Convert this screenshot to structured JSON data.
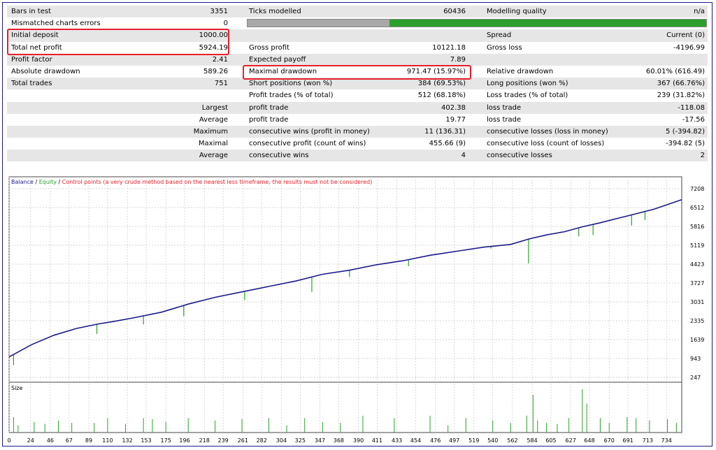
{
  "report": {
    "row1": {
      "bars_label": "Bars in test",
      "bars_value": "3351",
      "ticks_label": "Ticks modelled",
      "ticks_value": "60436",
      "quality_label": "Modelling quality",
      "quality_value": "n/a"
    },
    "row2": {
      "mismatch_label": "Mismatched charts errors",
      "mismatch_value": "0"
    },
    "row3": {
      "deposit_label": "Initial deposit",
      "deposit_value": "1000.00",
      "spread_label": "Spread",
      "spread_value": "Current (0)"
    },
    "row4": {
      "netprofit_label": "Total net profit",
      "netprofit_value": "5924.19",
      "grossprofit_label": "Gross profit",
      "grossprofit_value": "10121.18",
      "grossloss_label": "Gross loss",
      "grossloss_value": "-4196.99"
    },
    "row5": {
      "pf_label": "Profit factor",
      "pf_value": "2.41",
      "ep_label": "Expected payoff",
      "ep_value": "7.89"
    },
    "row6": {
      "absdd_label": "Absolute drawdown",
      "absdd_value": "589.26",
      "maxdd_label": "Maximal drawdown",
      "maxdd_value": "971.47 (15.97%)",
      "reldd_label": "Relative drawdown",
      "reldd_value": "60.01% (616.49)"
    },
    "row7": {
      "trades_label": "Total trades",
      "trades_value": "751",
      "short_label": "Short positions (won %)",
      "short_value": "384 (69.53%)",
      "long_label": "Long positions (won %)",
      "long_value": "367 (66.76%)"
    },
    "row8": {
      "ptrades_label": "Profit trades (% of total)",
      "ptrades_value": "512 (68.18%)",
      "ltrades_label": "Loss trades (% of total)",
      "ltrades_value": "239 (31.82%)"
    },
    "row9": {
      "prefix": "Largest",
      "profit_label": "profit trade",
      "profit_value": "402.38",
      "loss_label": "loss trade",
      "loss_value": "-118.08"
    },
    "row10": {
      "prefix": "Average",
      "profit_label": "profit trade",
      "profit_value": "19.77",
      "loss_label": "loss trade",
      "loss_value": "-17.56"
    },
    "row11": {
      "prefix": "Maximum",
      "wins_label": "consecutive wins (profit in money)",
      "wins_value": "11 (136.31)",
      "losses_label": "consecutive losses (loss in money)",
      "losses_value": "5 (-394.82)"
    },
    "row12": {
      "prefix": "Maximal",
      "cprofit_label": "consecutive profit (count of wins)",
      "cprofit_value": "455.66 (9)",
      "closs_label": "consecutive loss (count of losses)",
      "closs_value": "-394.82 (5)"
    },
    "row13": {
      "prefix": "Average",
      "cwins_label": "consecutive wins",
      "cwins_value": "4",
      "closses_label": "consecutive losses",
      "closses_value": "2"
    }
  },
  "quality_bar": {
    "gray_fraction": 0.31
  },
  "colors": {
    "balance": "#1a1a8c",
    "equity": "#2ca02c",
    "control": "#e8202a",
    "highlight": "#e8202a",
    "alt_row": "#e6e6e6",
    "grid": "#c8c8c8"
  },
  "chart_data": {
    "type": "line",
    "legend": {
      "balance": "Balance",
      "sep1": " / ",
      "equity": "Equity",
      "sep2": " / ",
      "control": "Control points (a very crude method based on the nearest less timeframe, the results must not be considered)"
    },
    "size_label": "Size",
    "y_ticks": [
      7208,
      6512,
      5816,
      5119,
      4423,
      3727,
      3031,
      2335,
      1639,
      943,
      247
    ],
    "x_ticks": [
      0,
      24,
      46,
      67,
      89,
      110,
      132,
      153,
      175,
      196,
      218,
      239,
      261,
      282,
      304,
      325,
      347,
      368,
      390,
      411,
      433,
      454,
      476,
      497,
      519,
      540,
      562,
      584,
      605,
      627,
      648,
      670,
      691,
      713,
      734
    ],
    "xlim": [
      0,
      751
    ],
    "ylim": [
      247,
      7208
    ],
    "balance": [
      [
        0,
        1000
      ],
      [
        25,
        1450
      ],
      [
        50,
        1800
      ],
      [
        75,
        2050
      ],
      [
        100,
        2220
      ],
      [
        115,
        2300
      ],
      [
        140,
        2450
      ],
      [
        170,
        2650
      ],
      [
        200,
        2950
      ],
      [
        230,
        3200
      ],
      [
        260,
        3400
      ],
      [
        290,
        3600
      ],
      [
        320,
        3800
      ],
      [
        350,
        4050
      ],
      [
        380,
        4200
      ],
      [
        410,
        4400
      ],
      [
        440,
        4550
      ],
      [
        470,
        4750
      ],
      [
        500,
        4900
      ],
      [
        530,
        5050
      ],
      [
        560,
        5150
      ],
      [
        580,
        5350
      ],
      [
        600,
        5500
      ],
      [
        620,
        5620
      ],
      [
        640,
        5800
      ],
      [
        660,
        5950
      ],
      [
        690,
        6200
      ],
      [
        720,
        6450
      ],
      [
        751,
        6800
      ]
    ],
    "equity_dips": [
      [
        5,
        700
      ],
      [
        98,
        1850
      ],
      [
        150,
        2200
      ],
      [
        195,
        2500
      ],
      [
        263,
        3100
      ],
      [
        338,
        3400
      ],
      [
        380,
        3950
      ],
      [
        446,
        4350
      ],
      [
        538,
        5000
      ],
      [
        580,
        4450
      ],
      [
        636,
        5450
      ],
      [
        652,
        5500
      ],
      [
        695,
        5850
      ],
      [
        710,
        6050
      ]
    ],
    "size_spikes": [
      [
        5,
        0.32
      ],
      [
        10,
        0.15
      ],
      [
        28,
        0.22
      ],
      [
        40,
        0.18
      ],
      [
        55,
        0.25
      ],
      [
        70,
        0.2
      ],
      [
        95,
        0.2
      ],
      [
        110,
        0.3
      ],
      [
        130,
        0.18
      ],
      [
        150,
        0.3
      ],
      [
        160,
        0.28
      ],
      [
        175,
        0.22
      ],
      [
        200,
        0.3
      ],
      [
        230,
        0.25
      ],
      [
        260,
        0.28
      ],
      [
        290,
        0.3
      ],
      [
        310,
        0.15
      ],
      [
        330,
        0.3
      ],
      [
        350,
        0.22
      ],
      [
        370,
        0.2
      ],
      [
        395,
        0.35
      ],
      [
        430,
        0.3
      ],
      [
        470,
        0.35
      ],
      [
        490,
        0.15
      ],
      [
        510,
        0.3
      ],
      [
        540,
        0.25
      ],
      [
        560,
        0.2
      ],
      [
        578,
        0.35
      ],
      [
        585,
        0.78
      ],
      [
        590,
        0.25
      ],
      [
        600,
        0.2
      ],
      [
        612,
        0.18
      ],
      [
        625,
        0.3
      ],
      [
        640,
        0.9
      ],
      [
        645,
        0.6
      ],
      [
        660,
        0.3
      ],
      [
        670,
        0.2
      ],
      [
        690,
        0.32
      ],
      [
        700,
        0.3
      ],
      [
        715,
        0.25
      ],
      [
        735,
        0.28
      ],
      [
        745,
        0.2
      ]
    ]
  }
}
